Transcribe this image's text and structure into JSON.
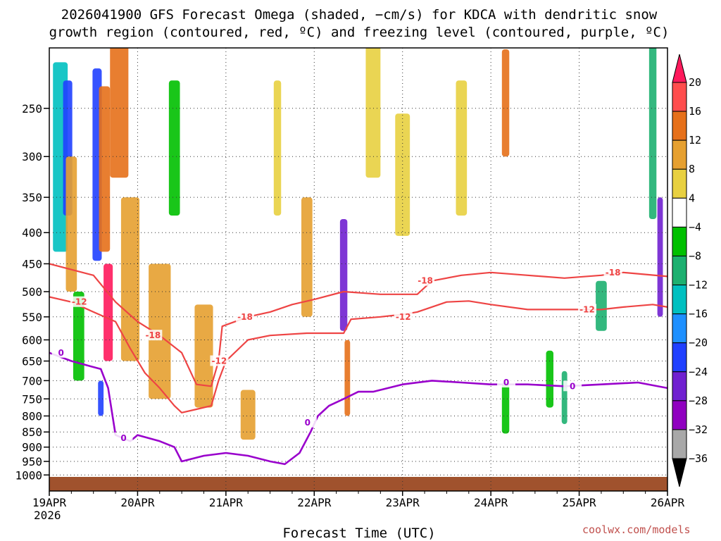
{
  "header": {
    "title_line1": "2026041900 GFS Forecast Omega (shaded, −cm/s) for KDCA with dendritic snow",
    "title_line2": "growth region (contoured, red, ºC) and freezing level (contoured, purple, ºC)"
  },
  "footer": {
    "credit": "coolwx.com/models"
  },
  "colors": {
    "dgz_contour": "#ee4444",
    "freezing_contour": "#9900cc",
    "ground": "#a0522d"
  },
  "chart_data": {
    "type": "heatmap",
    "xlabel": "Forecast Time (UTC)",
    "x_ticks": [
      "19APR",
      "20APR",
      "21APR",
      "22APR",
      "23APR",
      "24APR",
      "25APR",
      "26APR"
    ],
    "x_year": "2026",
    "x_range_hours": [
      0,
      168
    ],
    "y_scale": "pressure-log",
    "y_ticks": [
      250,
      300,
      350,
      400,
      450,
      500,
      550,
      600,
      650,
      700,
      750,
      800,
      850,
      900,
      950,
      1000
    ],
    "y_range_hPa": [
      200,
      1010
    ],
    "grid": true,
    "colorbar": {
      "labels": [
        "20",
        "16",
        "12",
        "8",
        "4",
        "−4",
        "−8",
        "−12",
        "−16",
        "−20",
        "−24",
        "−28",
        "−32",
        "−36"
      ],
      "colors": [
        "#ff1a5c",
        "#ff4d4d",
        "#e6701a",
        "#e6a030",
        "#e8d040",
        "#ffffff",
        "#00c000",
        "#1db070",
        "#00c0c0",
        "#1e90ff",
        "#2040ff",
        "#7020d0",
        "#9000c0",
        "#a8a8a8",
        "#000000"
      ]
    },
    "omega_blobs": [
      {
        "t": 3,
        "p": 320,
        "dt": 4,
        "dp": 220,
        "v": -16
      },
      {
        "t": 5,
        "p": 300,
        "dt": 2.5,
        "dp": 150,
        "v": -24
      },
      {
        "t": 6,
        "p": 400,
        "dt": 3,
        "dp": 200,
        "v": 8
      },
      {
        "t": 8,
        "p": 600,
        "dt": 3,
        "dp": 200,
        "v": -8
      },
      {
        "t": 13,
        "p": 330,
        "dt": 2.5,
        "dp": 230,
        "v": -24
      },
      {
        "t": 15,
        "p": 330,
        "dt": 3,
        "dp": 200,
        "v": 12
      },
      {
        "t": 14,
        "p": 750,
        "dt": 1.5,
        "dp": 100,
        "v": -24
      },
      {
        "t": 16,
        "p": 550,
        "dt": 2.5,
        "dp": 200,
        "v": 20
      },
      {
        "t": 19,
        "p": 250,
        "dt": 5,
        "dp": 150,
        "v": 12
      },
      {
        "t": 22,
        "p": 500,
        "dt": 5,
        "dp": 300,
        "v": 8
      },
      {
        "t": 30,
        "p": 600,
        "dt": 6,
        "dp": 300,
        "v": 8
      },
      {
        "t": 34,
        "p": 300,
        "dt": 3,
        "dp": 150,
        "v": -8
      },
      {
        "t": 42,
        "p": 650,
        "dt": 5,
        "dp": 250,
        "v": 8
      },
      {
        "t": 54,
        "p": 800,
        "dt": 4,
        "dp": 150,
        "v": 8
      },
      {
        "t": 62,
        "p": 300,
        "dt": 2,
        "dp": 150,
        "v": 4
      },
      {
        "t": 70,
        "p": 450,
        "dt": 3,
        "dp": 200,
        "v": 8
      },
      {
        "t": 80,
        "p": 480,
        "dt": 2,
        "dp": 200,
        "v": -28
      },
      {
        "t": 81,
        "p": 700,
        "dt": 1.5,
        "dp": 200,
        "v": 12
      },
      {
        "t": 88,
        "p": 250,
        "dt": 4,
        "dp": 150,
        "v": 4
      },
      {
        "t": 96,
        "p": 330,
        "dt": 4,
        "dp": 150,
        "v": 4
      },
      {
        "t": 112,
        "p": 300,
        "dt": 3,
        "dp": 150,
        "v": 4
      },
      {
        "t": 124,
        "p": 250,
        "dt": 2,
        "dp": 100,
        "v": 12
      },
      {
        "t": 124,
        "p": 780,
        "dt": 2,
        "dp": 150,
        "v": -8
      },
      {
        "t": 136,
        "p": 700,
        "dt": 2,
        "dp": 150,
        "v": -8
      },
      {
        "t": 140,
        "p": 750,
        "dt": 1.5,
        "dp": 150,
        "v": -12
      },
      {
        "t": 150,
        "p": 530,
        "dt": 3,
        "dp": 100,
        "v": -12
      },
      {
        "t": 164,
        "p": 280,
        "dt": 2,
        "dp": 200,
        "v": -12
      },
      {
        "t": 166,
        "p": 450,
        "dt": 1.5,
        "dp": 200,
        "v": -28
      }
    ],
    "contours": [
      {
        "label": "-18",
        "color": "dgz",
        "points": [
          [
            0,
            450
          ],
          [
            6,
            460
          ],
          [
            12,
            470
          ],
          [
            18,
            520
          ],
          [
            24,
            560
          ],
          [
            30,
            590
          ],
          [
            36,
            630
          ],
          [
            40,
            710
          ],
          [
            44,
            715
          ],
          [
            46,
            650
          ],
          [
            47,
            570
          ],
          [
            54,
            550
          ],
          [
            60,
            540
          ],
          [
            66,
            525
          ],
          [
            72,
            515
          ],
          [
            80,
            500
          ],
          [
            90,
            505
          ],
          [
            100,
            505
          ],
          [
            104,
            480
          ],
          [
            112,
            470
          ],
          [
            120,
            465
          ],
          [
            130,
            470
          ],
          [
            140,
            475
          ],
          [
            150,
            470
          ],
          [
            156,
            465
          ],
          [
            168,
            472
          ]
        ],
        "labels_at": [
          [
            28,
            590
          ],
          [
            53,
            550
          ],
          [
            102,
            480
          ],
          [
            153,
            465
          ]
        ]
      },
      {
        "label": "-12",
        "color": "dgz",
        "points": [
          [
            0,
            510
          ],
          [
            6,
            520
          ],
          [
            12,
            540
          ],
          [
            18,
            560
          ],
          [
            22,
            620
          ],
          [
            26,
            680
          ],
          [
            30,
            720
          ],
          [
            34,
            770
          ],
          [
            36,
            790
          ],
          [
            40,
            780
          ],
          [
            44,
            770
          ],
          [
            46,
            700
          ],
          [
            48,
            650
          ],
          [
            54,
            600
          ],
          [
            60,
            590
          ],
          [
            70,
            585
          ],
          [
            80,
            585
          ],
          [
            82,
            555
          ],
          [
            90,
            550
          ],
          [
            96,
            545
          ],
          [
            100,
            540
          ],
          [
            108,
            520
          ],
          [
            114,
            518
          ],
          [
            120,
            525
          ],
          [
            130,
            535
          ],
          [
            140,
            535
          ],
          [
            150,
            535
          ],
          [
            156,
            530
          ],
          [
            164,
            525
          ],
          [
            168,
            530
          ]
        ],
        "labels_at": [
          [
            8,
            520
          ],
          [
            46,
            650
          ],
          [
            96,
            550
          ],
          [
            146,
            535
          ]
        ]
      },
      {
        "label": "0",
        "color": "freezing",
        "points": [
          [
            0,
            630
          ],
          [
            6,
            650
          ],
          [
            10,
            660
          ],
          [
            14,
            670
          ],
          [
            16,
            720
          ],
          [
            18,
            860
          ],
          [
            22,
            880
          ],
          [
            24,
            860
          ],
          [
            30,
            880
          ],
          [
            34,
            900
          ],
          [
            36,
            950
          ],
          [
            42,
            930
          ],
          [
            48,
            920
          ],
          [
            54,
            930
          ],
          [
            60,
            950
          ],
          [
            64,
            960
          ],
          [
            68,
            920
          ],
          [
            71,
            850
          ],
          [
            73,
            800
          ],
          [
            76,
            770
          ],
          [
            80,
            750
          ],
          [
            84,
            730
          ],
          [
            88,
            730
          ],
          [
            96,
            710
          ],
          [
            104,
            700
          ],
          [
            112,
            705
          ],
          [
            120,
            710
          ],
          [
            130,
            710
          ],
          [
            140,
            715
          ],
          [
            150,
            710
          ],
          [
            160,
            705
          ],
          [
            168,
            720
          ]
        ],
        "labels_at": [
          [
            3,
            630
          ],
          [
            70,
            820
          ],
          [
            20,
            870
          ],
          [
            124,
            705
          ],
          [
            142,
            715
          ]
        ]
      }
    ]
  }
}
